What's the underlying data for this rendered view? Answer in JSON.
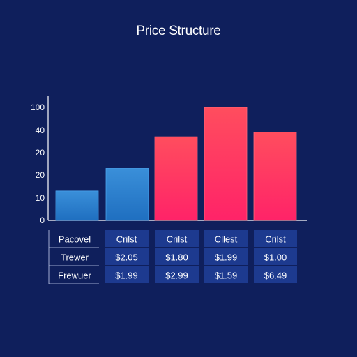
{
  "title": "Price Structure",
  "colors": {
    "background": "#0f1f5c",
    "blue_bar_top": "#3a8fd9",
    "blue_bar_bottom": "#1f6fc0",
    "red_bar_top": "#ff4d5e",
    "red_bar_bottom": "#ff2368",
    "table_cell": "#1d3a8f",
    "axis": "#ffffff"
  },
  "chart_data": {
    "type": "bar",
    "title": "Price Structure",
    "y_tick_labels": [
      "0",
      "10",
      "20",
      "20",
      "40",
      "100"
    ],
    "bars": [
      {
        "value": 13,
        "color": "blue"
      },
      {
        "value": 23,
        "color": "blue"
      },
      {
        "value": 37,
        "color": "red"
      },
      {
        "value": 50,
        "color": "red"
      },
      {
        "value": 39,
        "color": "red"
      }
    ],
    "grid": false,
    "legend": "none"
  },
  "table": {
    "rows": [
      {
        "label": "Pacovel",
        "cells": [
          "Crilst",
          "Crilst",
          "Cllest",
          "Crilst"
        ]
      },
      {
        "label": "Trewer",
        "cells": [
          "$2.05",
          "$1.80",
          "$1.99",
          "$1.00"
        ]
      },
      {
        "label": "Frewuer",
        "cells": [
          "$1.99",
          "$2.99",
          "$1.59",
          "$6.49"
        ]
      }
    ]
  }
}
